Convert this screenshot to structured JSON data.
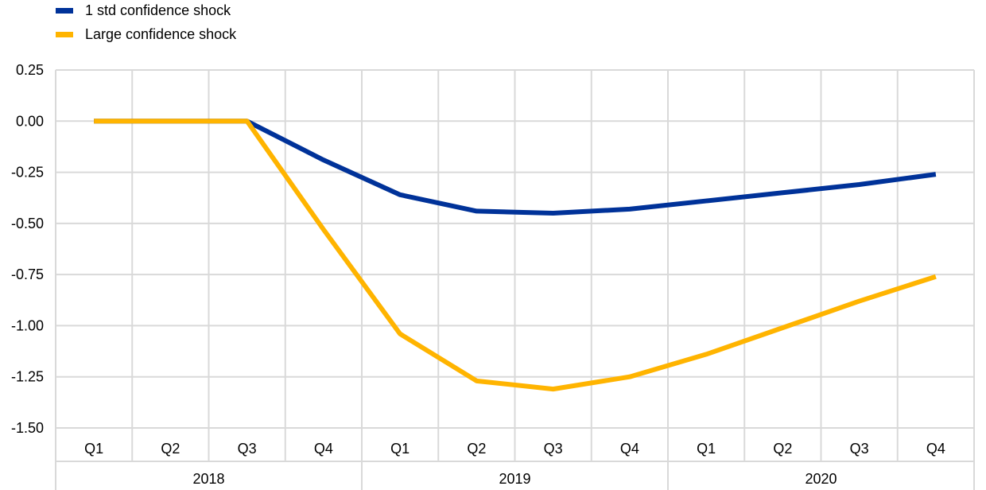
{
  "chart_data": {
    "type": "line",
    "title": "",
    "xlabel": "",
    "ylabel": "",
    "ylim": [
      -1.5,
      0.25
    ],
    "yticks": [
      "0.25",
      "0.00",
      "-0.25",
      "-0.50",
      "-0.75",
      "-1.00",
      "-1.25",
      "-1.50"
    ],
    "ytick_values": [
      0.25,
      0,
      -0.25,
      -0.5,
      -0.75,
      -1.0,
      -1.25,
      -1.5
    ],
    "categories": [
      "Q1",
      "Q2",
      "Q3",
      "Q4",
      "Q1",
      "Q2",
      "Q3",
      "Q4",
      "Q1",
      "Q2",
      "Q3",
      "Q4"
    ],
    "years": [
      "2018",
      "2019",
      "2020"
    ],
    "grid": true,
    "legend_position": "top-left",
    "series": [
      {
        "name": "1 std confidence shock",
        "color": "#003299",
        "values": [
          0,
          0,
          0,
          -0.19,
          -0.36,
          -0.44,
          -0.45,
          -0.43,
          -0.39,
          -0.35,
          -0.31,
          -0.26
        ]
      },
      {
        "name": "Large confidence shock",
        "color": "#FFB400",
        "values": [
          0,
          0,
          0,
          -0.53,
          -1.04,
          -1.27,
          -1.31,
          -1.25,
          -1.14,
          -1.01,
          -0.88,
          -0.76
        ]
      }
    ]
  }
}
